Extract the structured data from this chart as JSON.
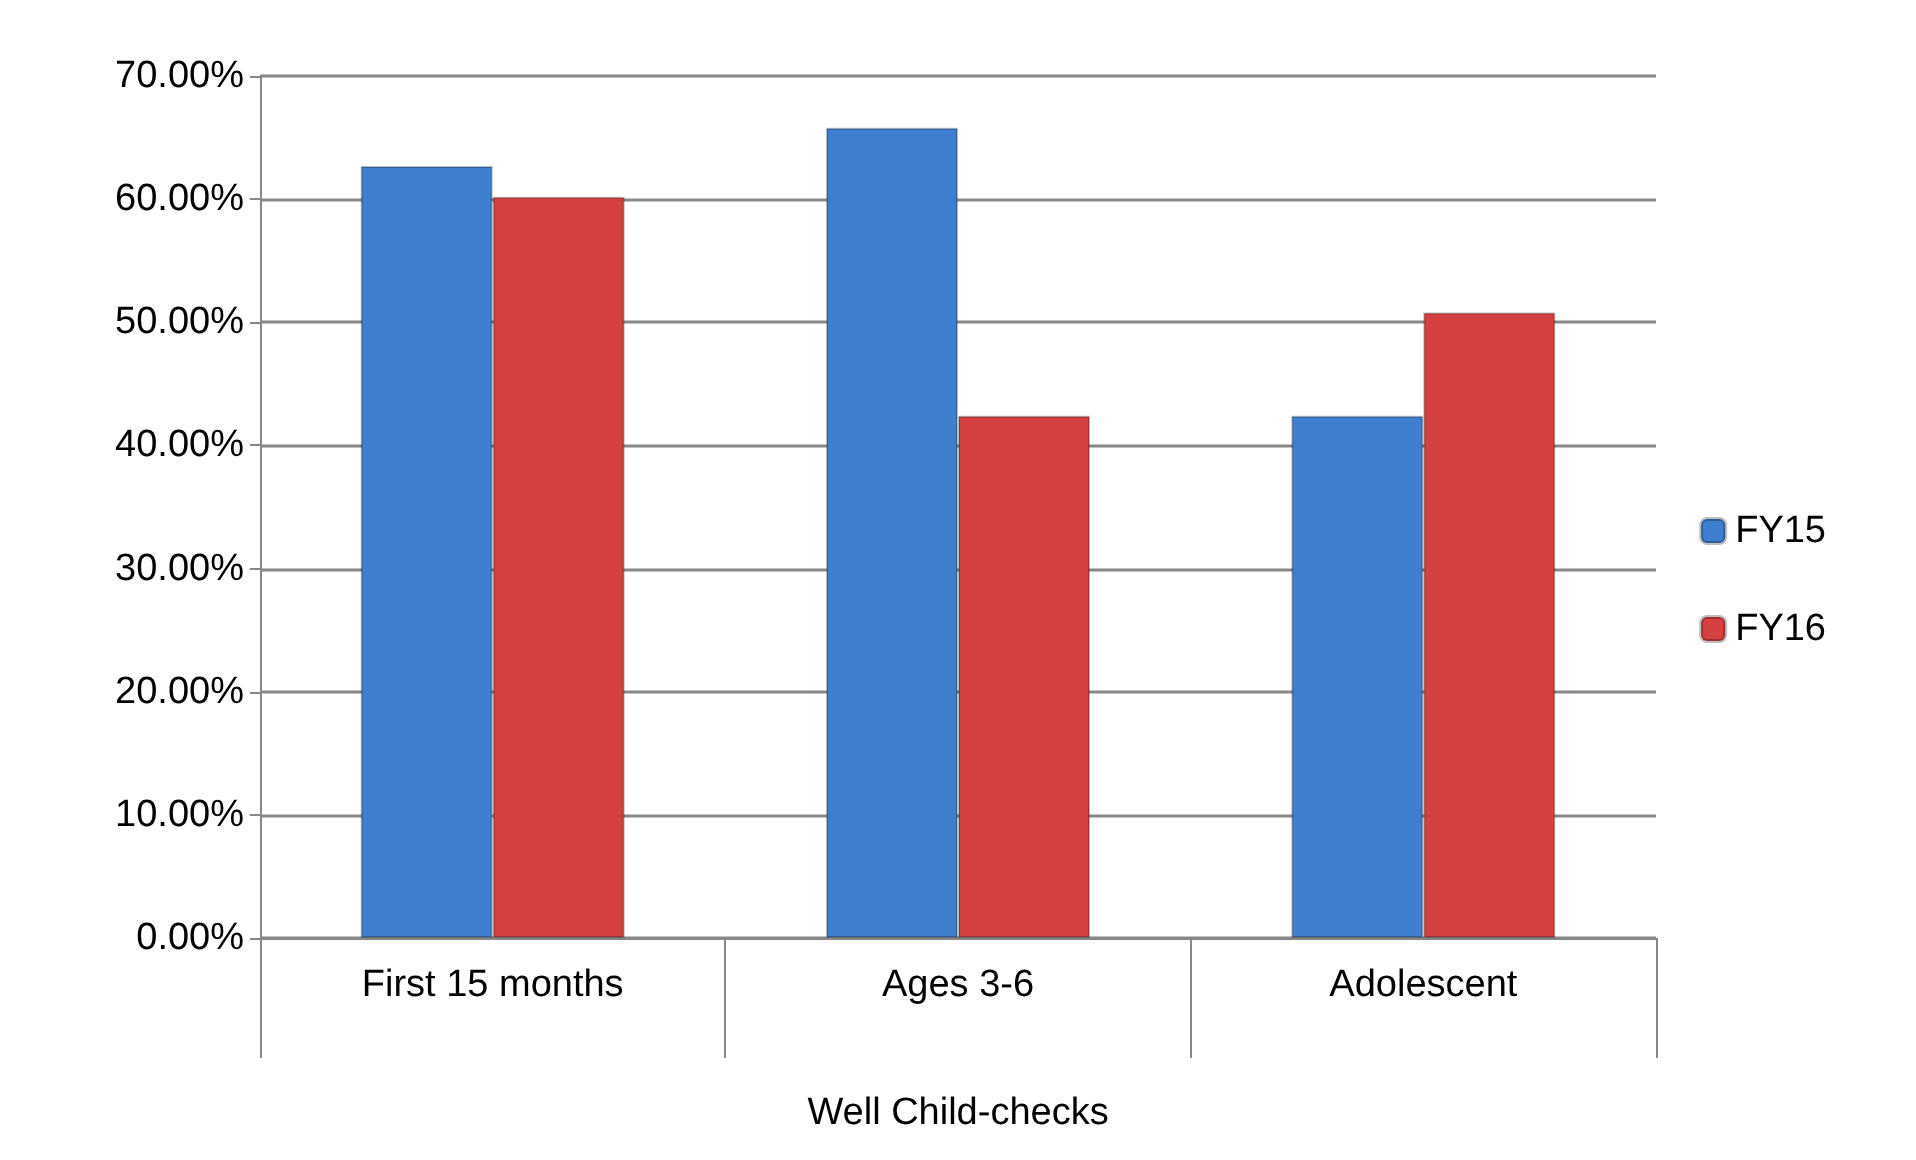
{
  "chart_data": {
    "type": "bar",
    "xlabel": "Well Child-checks",
    "categories": [
      "First 15 months",
      "Ages 3-6",
      "Adolescent"
    ],
    "series": [
      {
        "name": "FY15",
        "color": "#3f7fcf",
        "values": [
          62.7,
          65.8,
          42.4
        ]
      },
      {
        "name": "FY16",
        "color": "#d44140",
        "values": [
          60.2,
          42.4,
          50.8
        ]
      }
    ],
    "ylim": [
      0,
      70
    ],
    "yticks": [
      {
        "value": 0,
        "label": "0.00%"
      },
      {
        "value": 10,
        "label": "10.00%"
      },
      {
        "value": 20,
        "label": "20.00%"
      },
      {
        "value": 30,
        "label": "30.00%"
      },
      {
        "value": 40,
        "label": "40.00%"
      },
      {
        "value": 50,
        "label": "50.00%"
      },
      {
        "value": 60,
        "label": "60.00%"
      },
      {
        "value": 70,
        "label": "70.00%"
      }
    ],
    "grid": "y",
    "legend": "right"
  }
}
